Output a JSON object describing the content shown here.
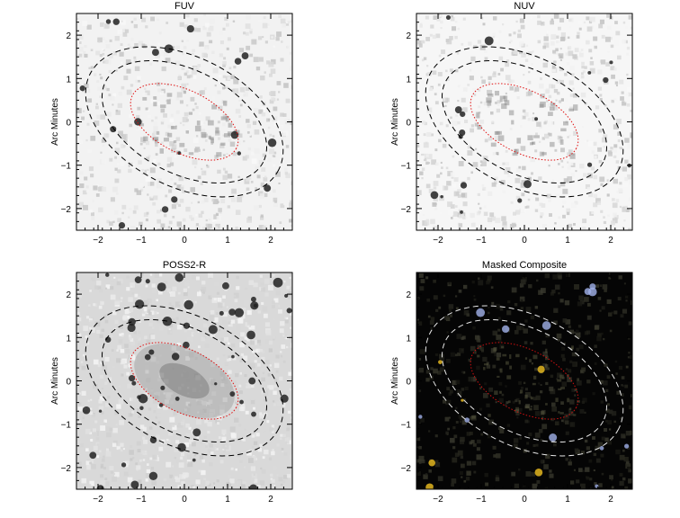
{
  "panels": [
    {
      "id": "fuv",
      "title": "FUV",
      "ylabel": "Arc Minutes",
      "background": "#f2f2f2",
      "dark": false
    },
    {
      "id": "nuv",
      "title": "NUV",
      "ylabel": "Arc Minutes",
      "background": "#f6f6f6",
      "dark": false
    },
    {
      "id": "poss",
      "title": "POSS2-R",
      "ylabel": "Arc Minutes",
      "background": "#d9d9d9",
      "dark": false
    },
    {
      "id": "comp",
      "title": "Masked Composite",
      "ylabel": "Arc Minutes",
      "background": "#050505",
      "dark": true
    }
  ],
  "axes": {
    "x_ticks": [
      "−2",
      "−1",
      "0",
      "1",
      "2"
    ],
    "y_ticks": [
      "2",
      "1",
      "0",
      "−1",
      "−2"
    ],
    "range": [
      -2.5,
      2.5
    ]
  },
  "ellipses": {
    "center": [
      0,
      0
    ],
    "position_angle_deg": -27,
    "inner": {
      "a": 1.35,
      "b": 0.72,
      "color": "#e01010",
      "style": "dotted"
    },
    "mid": {
      "a": 2.05,
      "b": 1.2,
      "color": "#000000",
      "style": "dashed"
    },
    "outer": {
      "a": 2.45,
      "b": 1.5,
      "color": "#000000",
      "style": "dashed"
    }
  },
  "colors": {
    "axes": "#000000",
    "composite_contour": "#e8e8e8",
    "composite_inner": "#d01010",
    "star_yellow": "#f0c020",
    "star_blue": "#a0b0e8"
  }
}
